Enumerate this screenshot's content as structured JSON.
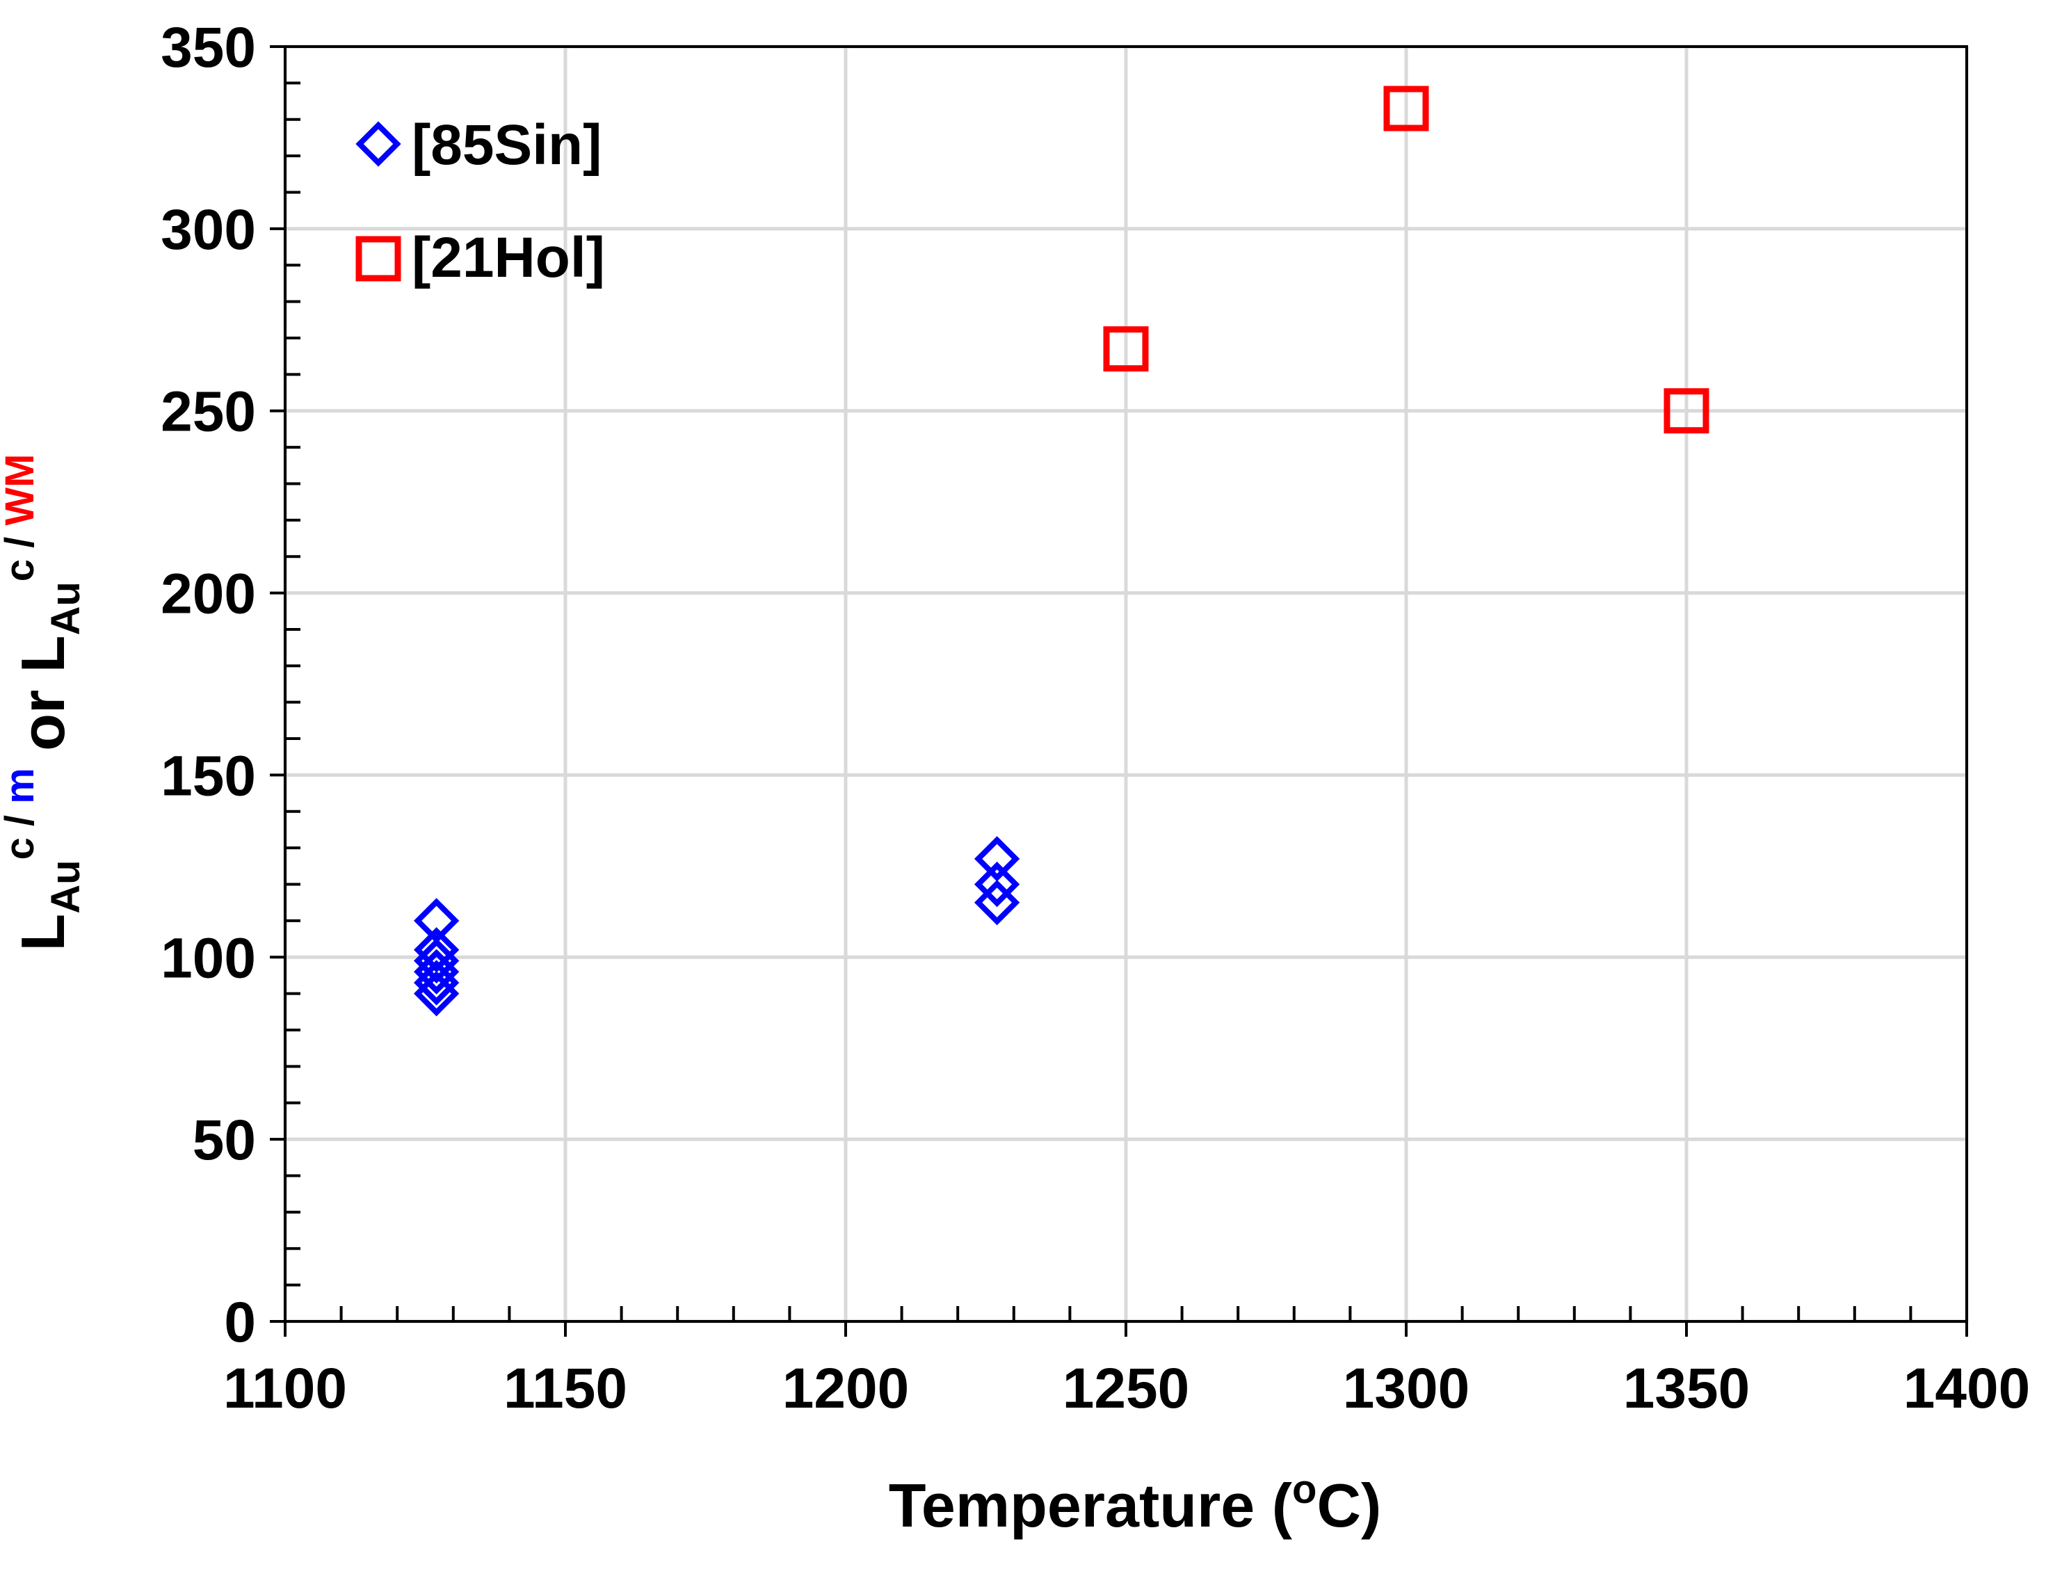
{
  "chart_data": {
    "type": "scatter",
    "title": "",
    "xlabel": {
      "text": "Temperature (",
      "sup": "o",
      "unit": "C)"
    },
    "ylabel": {
      "part1": "L",
      "sub1": "Au",
      "sup1": "c",
      "slash1": " / ",
      "medium1": "m",
      "or": " or ",
      "part2": "L",
      "sub2": "Au",
      "sup2": "c",
      "slash2": " / ",
      "medium2": "WM",
      "color1": "#0000ff",
      "color2": "#ff0000"
    },
    "xlim": [
      1100,
      1400
    ],
    "ylim": [
      0,
      350
    ],
    "xticks": [
      1100,
      1150,
      1200,
      1250,
      1300,
      1350,
      1400
    ],
    "yticks": [
      0,
      50,
      100,
      150,
      200,
      250,
      300,
      350
    ],
    "grid": true,
    "legend_position": "top-left",
    "series": [
      {
        "name": "[85Sin]",
        "marker": "diamond",
        "color": "#0000ff",
        "points": [
          {
            "x": 1127,
            "y": 110
          },
          {
            "x": 1127,
            "y": 102
          },
          {
            "x": 1127,
            "y": 99
          },
          {
            "x": 1127,
            "y": 96
          },
          {
            "x": 1127,
            "y": 93
          },
          {
            "x": 1127,
            "y": 90
          },
          {
            "x": 1227,
            "y": 127
          },
          {
            "x": 1227,
            "y": 120
          },
          {
            "x": 1227,
            "y": 115
          }
        ]
      },
      {
        "name": "[21Hol]",
        "marker": "square",
        "color": "#ff0000",
        "points": [
          {
            "x": 1250,
            "y": 267
          },
          {
            "x": 1300,
            "y": 333
          },
          {
            "x": 1350,
            "y": 250
          }
        ]
      }
    ]
  }
}
